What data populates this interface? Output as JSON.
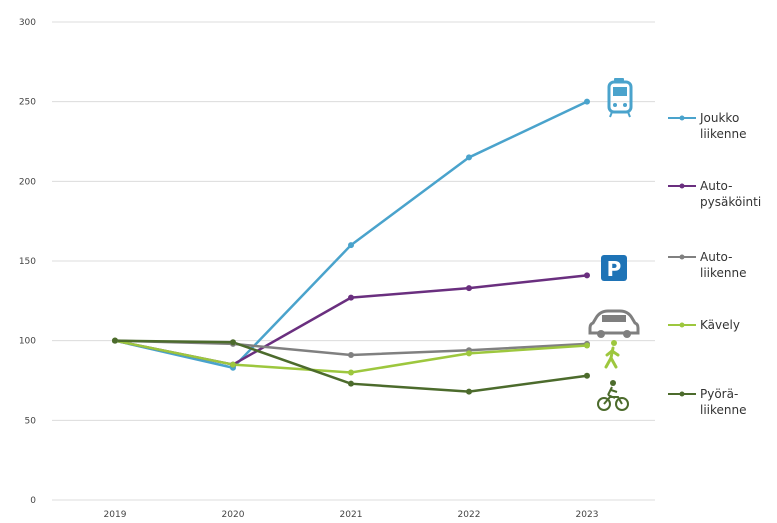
{
  "chart_data": {
    "type": "line",
    "title": "",
    "xlabel": "",
    "ylabel": "",
    "categories": [
      "2019",
      "2020",
      "2021",
      "2022",
      "2023"
    ],
    "x_tick_labels": [
      "2019",
      "2020",
      "2021",
      "2022",
      "2023"
    ],
    "ylim": [
      0,
      300
    ],
    "y_ticks": [
      0,
      50,
      100,
      150,
      200,
      250,
      300
    ],
    "y_tick_labels": [
      "0",
      "50",
      "100",
      "150",
      "200",
      "250",
      "300"
    ],
    "grid": true,
    "legend_position": "right",
    "series": [
      {
        "name": "Joukko-liikenne",
        "legend_lines": [
          "Joukko",
          "liikenne"
        ],
        "color": "#4aa3cc",
        "icon": "bus-icon",
        "values": [
          100,
          83,
          160,
          215,
          250
        ]
      },
      {
        "name": "Auto-pysäköinti",
        "legend_lines": [
          "Auto-",
          "pysäköinti"
        ],
        "color": "#6a2f7f",
        "icon": "parking-icon",
        "values": [
          100,
          85,
          127,
          133,
          141
        ]
      },
      {
        "name": "Auto-liikenne",
        "legend_lines": [
          "Auto-",
          "liikenne"
        ],
        "color": "#808080",
        "icon": "car-icon",
        "values": [
          100,
          98,
          91,
          94,
          98
        ]
      },
      {
        "name": "Kävely",
        "legend_lines": [
          "Kävely"
        ],
        "color": "#9dc73e",
        "icon": "walking-person-icon",
        "values": [
          100,
          85,
          80,
          92,
          97
        ]
      },
      {
        "name": "Pyöräliikenne",
        "legend_lines": [
          "Pyörä-",
          "liikenne"
        ],
        "color": "#4c6b2c",
        "icon": "bicycle-icon",
        "values": [
          100,
          99,
          73,
          68,
          78
        ]
      }
    ]
  }
}
